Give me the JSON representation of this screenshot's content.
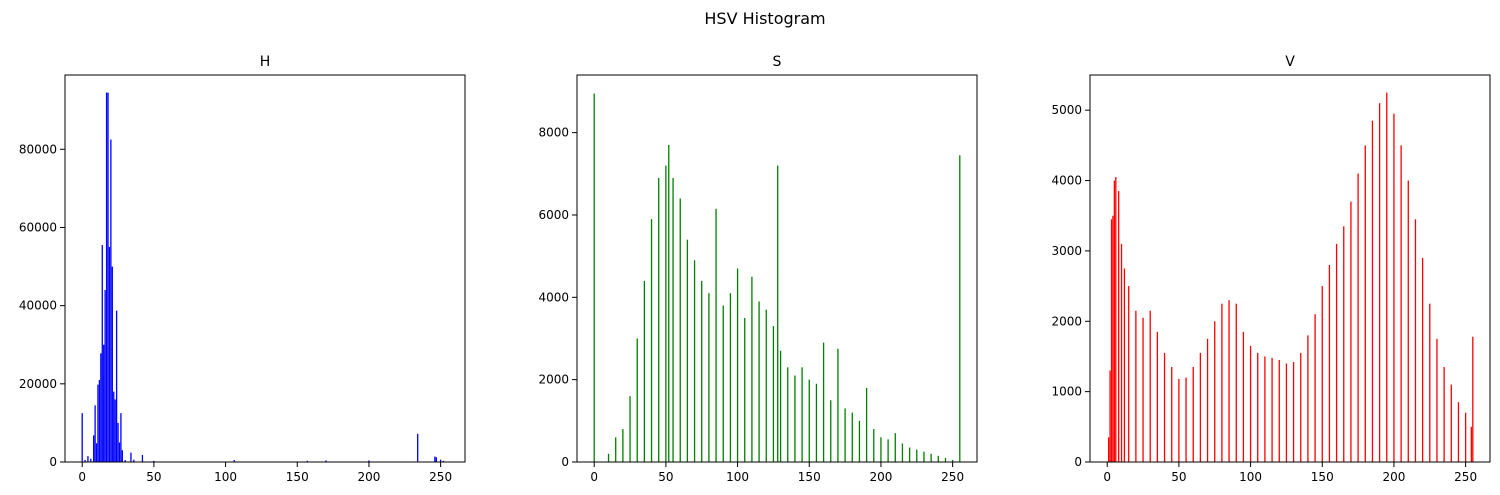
{
  "figure": {
    "suptitle": "HSV Histogram"
  },
  "chart_data": [
    {
      "type": "bar",
      "title": "H",
      "xlabel": "",
      "ylabel": "",
      "color": "#0000ff",
      "xlim": [
        -12,
        267
      ],
      "ylim": [
        0,
        99000
      ],
      "xticks": [
        0,
        50,
        100,
        150,
        200,
        250
      ],
      "yticks": [
        0,
        20000,
        40000,
        60000,
        80000
      ],
      "grid": false,
      "x": [
        0,
        2,
        4,
        6,
        8,
        9,
        10,
        11,
        12,
        13,
        14,
        15,
        16,
        17,
        18,
        19,
        20,
        21,
        22,
        23,
        24,
        25,
        26,
        27,
        28,
        30,
        34,
        36,
        42,
        50,
        106,
        157,
        170,
        200,
        234,
        246,
        247,
        250,
        252
      ],
      "values": [
        12500,
        500,
        1500,
        800,
        6800,
        14500,
        4800,
        19800,
        21000,
        27800,
        55500,
        30000,
        44000,
        94500,
        94500,
        55000,
        82500,
        50000,
        18000,
        16000,
        38700,
        10000,
        5000,
        12500,
        3000,
        500,
        2400,
        600,
        1800,
        300,
        500,
        300,
        400,
        400,
        7200,
        1400,
        1200,
        600,
        300
      ]
    },
    {
      "type": "bar",
      "title": "S",
      "xlabel": "",
      "ylabel": "",
      "color": "#008000",
      "xlim": [
        -12,
        267
      ],
      "ylim": [
        0,
        9400
      ],
      "xticks": [
        0,
        50,
        100,
        150,
        200,
        250
      ],
      "yticks": [
        0,
        2000,
        4000,
        6000,
        8000
      ],
      "grid": false,
      "x": [
        0,
        10,
        15,
        20,
        25,
        30,
        35,
        40,
        45,
        50,
        52,
        55,
        60,
        65,
        70,
        75,
        80,
        85,
        90,
        95,
        100,
        105,
        110,
        115,
        120,
        125,
        128,
        130,
        135,
        140,
        145,
        150,
        155,
        160,
        165,
        170,
        175,
        180,
        185,
        190,
        195,
        200,
        205,
        210,
        215,
        220,
        225,
        230,
        235,
        240,
        245,
        250,
        255
      ],
      "values": [
        8950,
        200,
        600,
        800,
        1600,
        3000,
        4400,
        5900,
        6900,
        7200,
        7700,
        6900,
        6400,
        5400,
        4900,
        4400,
        4100,
        6150,
        3800,
        4100,
        4700,
        3500,
        4500,
        3900,
        3700,
        3300,
        7200,
        2700,
        2300,
        2100,
        2300,
        2000,
        1900,
        2900,
        1500,
        2750,
        1300,
        1200,
        1000,
        1800,
        800,
        600,
        550,
        700,
        450,
        350,
        300,
        250,
        200,
        150,
        100,
        50,
        7450
      ]
    },
    {
      "type": "bar",
      "title": "V",
      "xlabel": "",
      "ylabel": "",
      "color": "#ff0000",
      "xlim": [
        -12,
        267
      ],
      "ylim": [
        0,
        5500
      ],
      "xticks": [
        0,
        50,
        100,
        150,
        200,
        250
      ],
      "yticks": [
        0,
        1000,
        2000,
        3000,
        4000,
        5000
      ],
      "grid": false,
      "x": [
        1,
        2,
        3,
        4,
        5,
        6,
        8,
        10,
        12,
        15,
        20,
        25,
        30,
        35,
        40,
        45,
        50,
        55,
        60,
        65,
        70,
        75,
        80,
        85,
        90,
        95,
        100,
        105,
        110,
        115,
        120,
        125,
        130,
        135,
        140,
        145,
        150,
        155,
        160,
        165,
        170,
        175,
        180,
        185,
        190,
        195,
        200,
        205,
        210,
        215,
        220,
        225,
        230,
        235,
        240,
        245,
        250,
        254,
        255
      ],
      "values": [
        350,
        1300,
        3450,
        3500,
        4000,
        4050,
        3850,
        3100,
        2750,
        2500,
        2150,
        2050,
        2150,
        1850,
        1550,
        1350,
        1180,
        1200,
        1350,
        1550,
        1750,
        2000,
        2250,
        2300,
        2250,
        1850,
        1650,
        1550,
        1500,
        1480,
        1450,
        1400,
        1420,
        1550,
        1800,
        2100,
        2500,
        2800,
        3100,
        3350,
        3700,
        4100,
        4500,
        4850,
        5100,
        5250,
        4950,
        4500,
        4000,
        3450,
        2900,
        2250,
        1750,
        1350,
        1100,
        850,
        700,
        500,
        1780
      ]
    }
  ]
}
